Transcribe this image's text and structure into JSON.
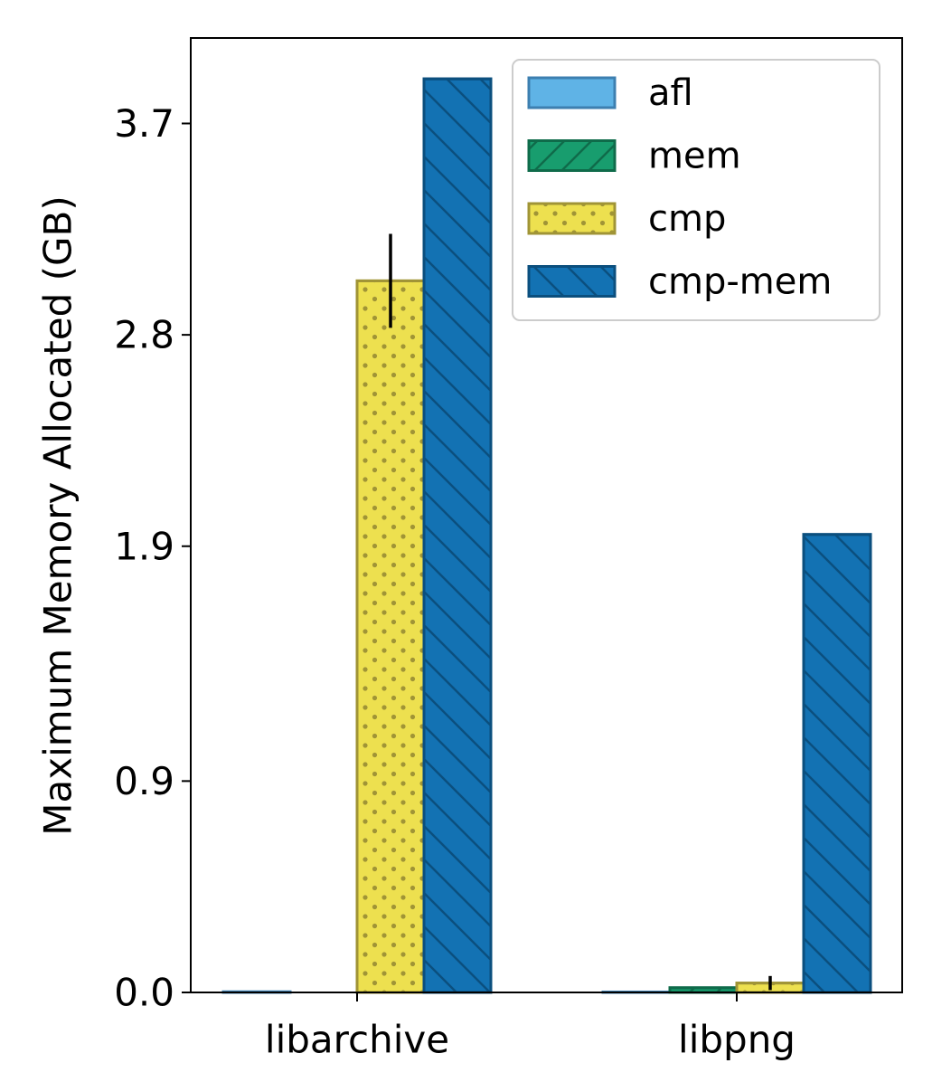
{
  "chart_data": {
    "type": "bar",
    "title": "",
    "xlabel": "",
    "ylabel": "Maximum Memory Allocated (GB)",
    "categories": [
      "libarchive",
      "libpng"
    ],
    "ylim": [
      0,
      4.06
    ],
    "yticks": [
      0.0,
      0.9,
      1.9,
      2.8,
      3.7
    ],
    "ytick_labels": [
      "0.0",
      "0.9",
      "1.9",
      "2.8",
      "3.7"
    ],
    "grid": false,
    "legend_position": "top-right",
    "series": [
      {
        "name": "afl",
        "values": [
          0.003,
          0.002
        ],
        "errors": [
          0,
          0
        ],
        "color": "#5fb3e6",
        "edge": "#3d7fb0",
        "pattern": "none"
      },
      {
        "name": "mem",
        "values": [
          0.0,
          0.02
        ],
        "errors": [
          0,
          0
        ],
        "color": "#189d6e",
        "edge": "#0f6b4a",
        "pattern": "diag-right"
      },
      {
        "name": "cmp",
        "values": [
          3.03,
          0.04
        ],
        "errors": [
          0.2,
          0.03
        ],
        "color": "#ede04f",
        "edge": "#a09436",
        "pattern": "dots"
      },
      {
        "name": "cmp-mem",
        "values": [
          3.89,
          1.95
        ],
        "errors": [
          0.0,
          0.0
        ],
        "color": "#1372b3",
        "edge": "#0b4f7e",
        "pattern": "diag-left"
      }
    ]
  }
}
